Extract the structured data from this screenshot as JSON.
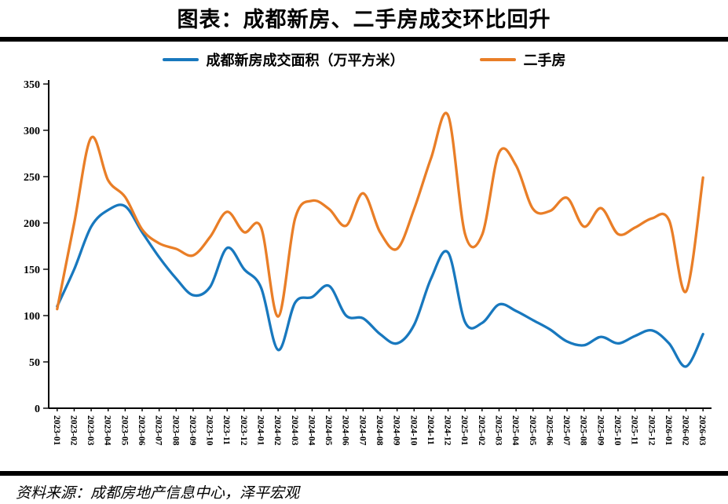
{
  "chart_data": {
    "type": "line",
    "title": "图表：成都新房、二手房成交环比回升",
    "source": "资料来源：成都房地产信息中心，泽平宏观",
    "grid": false,
    "legend_position": "top",
    "ylim": [
      0,
      350
    ],
    "ytick_step": 50,
    "x": [
      "2023-01",
      "2023-02",
      "2023-03",
      "2023-04",
      "2023-05",
      "2023-06",
      "2023-07",
      "2023-08",
      "2023-09",
      "2023-10",
      "2023-11",
      "2023-12",
      "2024-01",
      "2024-02",
      "2024-03",
      "2024-04",
      "2024-05",
      "2024-06",
      "2024-07",
      "2024-08",
      "2024-09",
      "2024-10",
      "2024-11",
      "2024-12",
      "2025-01",
      "2025-02",
      "2025-03",
      "2025-04",
      "2025-05",
      "2025-06",
      "2025-07",
      "2025-08",
      "2025-09",
      "2025-10",
      "2025-11",
      "2025-12",
      "2026-01",
      "2026-02",
      "2026-03"
    ],
    "series": [
      {
        "name": "成都新房成交面积（万平方米）",
        "color": "#1878BE",
        "values": [
          110,
          150,
          196,
          214,
          218,
          190,
          163,
          140,
          122,
          131,
          173,
          150,
          130,
          63,
          114,
          120,
          132,
          100,
          97,
          80,
          70,
          90,
          140,
          168,
          93,
          92,
          112,
          105,
          95,
          85,
          72,
          68,
          77,
          70,
          78,
          84,
          70,
          45,
          80
        ]
      },
      {
        "name": "二手房",
        "color": "#E97E27",
        "values": [
          107,
          200,
          292,
          246,
          228,
          193,
          178,
          172,
          165,
          185,
          212,
          190,
          195,
          99,
          205,
          224,
          215,
          197,
          232,
          190,
          172,
          215,
          270,
          316,
          188,
          187,
          276,
          262,
          215,
          213,
          227,
          196,
          216,
          188,
          195,
          205,
          203,
          126,
          249
        ]
      }
    ]
  }
}
